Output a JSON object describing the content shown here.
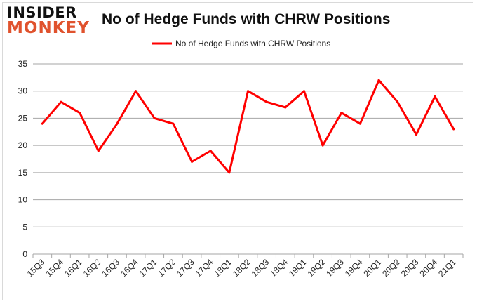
{
  "logo": {
    "line1": "INSIDER",
    "line2": "MONKEY"
  },
  "chart_data": {
    "type": "line",
    "title": "No of Hedge Funds with CHRW Positions",
    "categories": [
      "15Q3",
      "15Q4",
      "16Q1",
      "16Q2",
      "16Q3",
      "16Q4",
      "17Q1",
      "17Q2",
      "17Q3",
      "17Q4",
      "18Q1",
      "18Q2",
      "18Q3",
      "18Q4",
      "19Q1",
      "19Q2",
      "19Q3",
      "19Q4",
      "20Q1",
      "20Q2",
      "20Q3",
      "20Q4",
      "21Q1"
    ],
    "series": [
      {
        "name": "No of Hedge Funds with CHRW  Positions",
        "color": "#ff0000",
        "values": [
          24,
          28,
          26,
          19,
          24,
          30,
          25,
          24,
          17,
          19,
          15,
          30,
          28,
          27,
          30,
          20,
          26,
          24,
          32,
          28,
          22,
          29,
          23
        ]
      }
    ],
    "ylim": [
      0,
      35
    ],
    "yticks": [
      0,
      5,
      10,
      15,
      20,
      25,
      30,
      35
    ],
    "grid": true,
    "legend": "top-center",
    "xlabel": "",
    "ylabel": ""
  }
}
